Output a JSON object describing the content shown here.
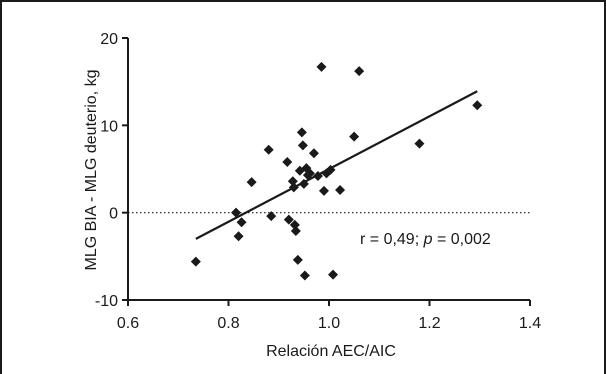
{
  "chart_data": {
    "type": "scatter",
    "xlabel": "Relación AEC/AIC",
    "ylabel": "MLG BIA - MLG deuterio, kg",
    "xlim": [
      0.6,
      1.4
    ],
    "ylim": [
      -10,
      20
    ],
    "x_ticks": [
      "0.6",
      "0.8",
      "1.0",
      "1.2",
      "1.4"
    ],
    "y_ticks": [
      "-10",
      "0",
      "10",
      "20"
    ],
    "x_tick_values": [
      0.6,
      0.8,
      1.0,
      1.2,
      1.4
    ],
    "y_tick_values": [
      -10,
      0,
      10,
      20
    ],
    "marker": "diamond",
    "marker_color": "#1a1a1a",
    "points": [
      {
        "x": 0.735,
        "y": -5.6
      },
      {
        "x": 0.815,
        "y": 0.0
      },
      {
        "x": 0.82,
        "y": -2.7
      },
      {
        "x": 0.826,
        "y": -1.1
      },
      {
        "x": 0.846,
        "y": 3.5
      },
      {
        "x": 0.88,
        "y": 7.2
      },
      {
        "x": 0.885,
        "y": -0.4
      },
      {
        "x": 0.917,
        "y": 5.8
      },
      {
        "x": 0.92,
        "y": -0.8
      },
      {
        "x": 0.928,
        "y": 3.6
      },
      {
        "x": 0.93,
        "y": 2.9
      },
      {
        "x": 0.932,
        "y": -1.4
      },
      {
        "x": 0.934,
        "y": -2.1
      },
      {
        "x": 0.938,
        "y": -5.4
      },
      {
        "x": 0.942,
        "y": 4.8
      },
      {
        "x": 0.946,
        "y": 9.2
      },
      {
        "x": 0.948,
        "y": 7.7
      },
      {
        "x": 0.95,
        "y": 3.3
      },
      {
        "x": 0.952,
        "y": -7.2
      },
      {
        "x": 0.955,
        "y": 5.1
      },
      {
        "x": 0.958,
        "y": 4.3
      },
      {
        "x": 0.962,
        "y": 4.5
      },
      {
        "x": 0.97,
        "y": 6.8
      },
      {
        "x": 0.978,
        "y": 4.2
      },
      {
        "x": 0.985,
        "y": 16.7
      },
      {
        "x": 0.99,
        "y": 2.5
      },
      {
        "x": 0.995,
        "y": 4.5
      },
      {
        "x": 1.003,
        "y": 4.9
      },
      {
        "x": 1.008,
        "y": -7.1
      },
      {
        "x": 1.022,
        "y": 2.6
      },
      {
        "x": 1.05,
        "y": 8.7
      },
      {
        "x": 1.06,
        "y": 16.2
      },
      {
        "x": 1.18,
        "y": 7.9
      },
      {
        "x": 1.295,
        "y": 12.3
      }
    ],
    "regression_line": {
      "x": [
        0.735,
        1.295
      ],
      "y": [
        -3.0,
        13.9
      ]
    },
    "reference_line": {
      "y": 0,
      "x": [
        0.6,
        1.4
      ],
      "style": "dotted"
    },
    "annotation": {
      "prefix": "r = 0,49; ",
      "p_symbol": "p",
      "suffix": " = 0,002"
    },
    "grid": false,
    "legend": "none"
  }
}
